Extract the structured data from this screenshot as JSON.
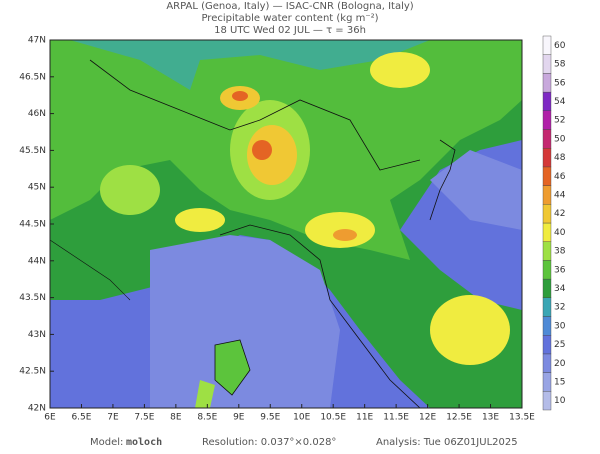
{
  "header": {
    "line1": "ARPAL (Genoa, Italy)  —  ISAC-CNR (Bologna, Italy)",
    "line2": "Precipitable water content (kg m⁻²)",
    "line3": "18 UTC Wed 02 JUL  —  τ = 36h"
  },
  "map": {
    "lat_labels": [
      "47N",
      "46.5N",
      "46N",
      "45.5N",
      "45N",
      "44.5N",
      "44N",
      "43.5N",
      "43N",
      "42.5N",
      "42N"
    ],
    "lon_labels": [
      "6E",
      "6.5E",
      "7E",
      "7.5E",
      "8E",
      "8.5E",
      "9E",
      "9.5E",
      "10E",
      "10.5E",
      "11E",
      "11.5E",
      "12E",
      "12.5E",
      "13E",
      "13.5E"
    ]
  },
  "colorbar": {
    "levels": [
      10,
      15,
      20,
      25,
      30,
      32,
      34,
      36,
      38,
      40,
      42,
      44,
      46,
      48,
      50,
      52,
      54,
      56,
      58,
      60
    ],
    "colors": [
      "#b4bce8",
      "#98a4e4",
      "#7c8ae0",
      "#6272dc",
      "#4f8ad6",
      "#3aa6b4",
      "#2e9e3c",
      "#5cc43c",
      "#9ee044",
      "#f0ec40",
      "#f0c834",
      "#ee9c30",
      "#e46424",
      "#d43838",
      "#c42870",
      "#b020a8",
      "#7e28c4",
      "#c8a8dc",
      "#e2d6ee",
      "#f8f6fc"
    ]
  },
  "footer": {
    "model_label": "Model:",
    "model": "moloch",
    "resolution": "Resolution: 0.037°×0.028°",
    "analysis": "Analysis: Tue 06Z01JUL2025"
  }
}
